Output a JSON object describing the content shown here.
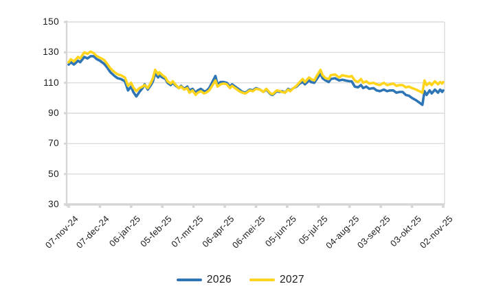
{
  "chart": {
    "background": "#ffffff",
    "text_color": "#1a1a1a",
    "grid_color": "#dcdcdc",
    "axis_color": "#d6d6d6"
  },
  "chart_data": {
    "type": "line",
    "title": "",
    "xlabel": "",
    "ylabel": "",
    "ylim": [
      30,
      150
    ],
    "y_ticks": [
      150,
      130,
      110,
      90,
      70,
      50,
      30
    ],
    "x_tick_labels": [
      "07-nov-24",
      "07-dec-24",
      "06-jan-25",
      "05-feb-25",
      "07-mrt-25",
      "06-apr-25",
      "06-mei-25",
      "05-jun-25",
      "05-jul-25",
      "04-aug-25",
      "03-sep-25",
      "03-okt-25",
      "02-nov-25"
    ],
    "x_tick_days": [
      0,
      30,
      60,
      90,
      120,
      150,
      180,
      210,
      240,
      270,
      300,
      330,
      360
    ],
    "x_range_days": [
      0,
      360
    ],
    "grid": "horizontal",
    "legend_position": "bottom",
    "series": [
      {
        "name": "2026",
        "color": "#2E75B6",
        "points": [
          [
            0,
            122
          ],
          [
            2,
            123.5
          ],
          [
            5,
            122
          ],
          [
            9,
            124.5
          ],
          [
            11,
            123.5
          ],
          [
            15,
            127
          ],
          [
            18,
            126
          ],
          [
            21,
            127.5
          ],
          [
            24,
            127.5
          ],
          [
            27,
            125.5
          ],
          [
            30,
            124.5
          ],
          [
            34,
            122.5
          ],
          [
            37,
            120
          ],
          [
            40,
            117
          ],
          [
            44,
            114.5
          ],
          [
            47,
            113
          ],
          [
            50,
            112.5
          ],
          [
            54,
            111
          ],
          [
            57,
            105
          ],
          [
            60,
            107.5
          ],
          [
            62,
            104
          ],
          [
            65,
            101
          ],
          [
            68,
            104
          ],
          [
            71,
            106.5
          ],
          [
            73,
            109
          ],
          [
            76,
            105.5
          ],
          [
            79,
            108.5
          ],
          [
            81,
            111
          ],
          [
            83,
            116
          ],
          [
            86,
            113.5
          ],
          [
            87,
            115
          ],
          [
            90,
            113.5
          ],
          [
            93,
            112.5
          ],
          [
            95,
            110
          ],
          [
            98,
            108.5
          ],
          [
            100,
            110
          ],
          [
            103,
            108
          ],
          [
            106,
            106.5
          ],
          [
            108,
            108
          ],
          [
            111,
            106
          ],
          [
            114,
            107.5
          ],
          [
            116,
            105
          ],
          [
            119,
            106
          ],
          [
            122,
            103.5
          ],
          [
            124,
            105
          ],
          [
            127,
            106
          ],
          [
            130,
            104.5
          ],
          [
            132,
            104.5
          ],
          [
            135,
            106.5
          ],
          [
            137,
            109
          ],
          [
            141,
            114.5
          ],
          [
            143,
            109
          ],
          [
            146,
            110.5
          ],
          [
            149,
            110.5
          ],
          [
            152,
            110
          ],
          [
            155,
            107.5
          ],
          [
            157,
            109
          ],
          [
            161,
            107
          ],
          [
            164,
            105.5
          ],
          [
            167,
            104
          ],
          [
            170,
            103.5
          ],
          [
            174,
            105.5
          ],
          [
            177,
            105
          ],
          [
            180,
            106.5
          ],
          [
            184,
            105.5
          ],
          [
            187,
            104
          ],
          [
            190,
            105.5
          ],
          [
            194,
            102.5
          ],
          [
            196,
            102
          ],
          [
            200,
            104.5
          ],
          [
            203,
            104
          ],
          [
            205,
            104.5
          ],
          [
            208,
            103.5
          ],
          [
            211,
            106
          ],
          [
            213,
            105
          ],
          [
            216,
            106.5
          ],
          [
            219,
            107.5
          ],
          [
            222,
            109.5
          ],
          [
            225,
            110.5
          ],
          [
            227,
            109
          ],
          [
            231,
            111.5
          ],
          [
            233,
            110.5
          ],
          [
            236,
            110
          ],
          [
            238,
            112
          ],
          [
            242,
            116
          ],
          [
            244,
            113
          ],
          [
            247,
            111.5
          ],
          [
            250,
            110.5
          ],
          [
            252,
            112.5
          ],
          [
            256,
            113
          ],
          [
            260,
            111.5
          ],
          [
            263,
            112
          ],
          [
            266,
            111.5
          ],
          [
            270,
            111
          ],
          [
            272,
            111
          ],
          [
            275,
            107.5
          ],
          [
            278,
            107
          ],
          [
            281,
            108.5
          ],
          [
            283,
            106.5
          ],
          [
            286,
            107.5
          ],
          [
            289,
            106
          ],
          [
            293,
            106.5
          ],
          [
            296,
            105
          ],
          [
            299,
            104.5
          ],
          [
            303,
            105.5
          ],
          [
            306,
            104.5
          ],
          [
            309,
            105
          ],
          [
            312,
            105
          ],
          [
            315,
            103.5
          ],
          [
            318,
            104
          ],
          [
            321,
            104
          ],
          [
            324,
            102
          ],
          [
            327,
            101.5
          ],
          [
            330,
            100
          ],
          [
            334,
            98.5
          ],
          [
            337,
            97
          ],
          [
            340,
            95.5
          ],
          [
            342,
            104.5
          ],
          [
            344,
            102
          ],
          [
            347,
            105
          ],
          [
            349,
            103
          ],
          [
            352,
            105.5
          ],
          [
            355,
            103.5
          ],
          [
            357,
            105.5
          ],
          [
            359,
            104
          ],
          [
            360,
            105
          ]
        ]
      },
      {
        "name": "2027",
        "color": "#FFD41C",
        "points": [
          [
            0,
            123.5
          ],
          [
            2,
            125.5
          ],
          [
            5,
            124
          ],
          [
            9,
            127
          ],
          [
            11,
            126
          ],
          [
            15,
            130
          ],
          [
            18,
            129
          ],
          [
            21,
            130.5
          ],
          [
            24,
            129.5
          ],
          [
            27,
            127.5
          ],
          [
            30,
            126.5
          ],
          [
            34,
            125
          ],
          [
            37,
            122.5
          ],
          [
            40,
            119.5
          ],
          [
            44,
            117
          ],
          [
            47,
            115.5
          ],
          [
            50,
            115
          ],
          [
            54,
            113.5
          ],
          [
            57,
            108
          ],
          [
            60,
            110
          ],
          [
            62,
            107
          ],
          [
            65,
            104.5
          ],
          [
            68,
            106.5
          ],
          [
            71,
            107.5
          ],
          [
            73,
            108.5
          ],
          [
            76,
            106.5
          ],
          [
            79,
            110
          ],
          [
            81,
            113
          ],
          [
            83,
            118.5
          ],
          [
            86,
            115.5
          ],
          [
            87,
            117
          ],
          [
            90,
            115
          ],
          [
            93,
            113.5
          ],
          [
            95,
            111
          ],
          [
            98,
            109.5
          ],
          [
            100,
            111
          ],
          [
            103,
            108.5
          ],
          [
            106,
            106.5
          ],
          [
            108,
            107.5
          ],
          [
            111,
            105.5
          ],
          [
            114,
            106.5
          ],
          [
            116,
            103.5
          ],
          [
            119,
            105
          ],
          [
            122,
            102
          ],
          [
            124,
            103.5
          ],
          [
            127,
            104.5
          ],
          [
            130,
            103
          ],
          [
            132,
            103.5
          ],
          [
            135,
            105
          ],
          [
            137,
            107
          ],
          [
            141,
            111.5
          ],
          [
            143,
            107.5
          ],
          [
            146,
            109
          ],
          [
            149,
            109.5
          ],
          [
            152,
            109
          ],
          [
            155,
            106.5
          ],
          [
            157,
            108
          ],
          [
            161,
            106
          ],
          [
            164,
            104.5
          ],
          [
            167,
            103.5
          ],
          [
            170,
            103
          ],
          [
            174,
            105
          ],
          [
            177,
            104.5
          ],
          [
            180,
            106
          ],
          [
            184,
            105.5
          ],
          [
            187,
            104
          ],
          [
            190,
            106
          ],
          [
            194,
            103
          ],
          [
            196,
            102.5
          ],
          [
            200,
            105
          ],
          [
            203,
            104.5
          ],
          [
            205,
            104
          ],
          [
            208,
            103.5
          ],
          [
            211,
            105.5
          ],
          [
            213,
            104.5
          ],
          [
            216,
            106.5
          ],
          [
            219,
            108
          ],
          [
            222,
            110.5
          ],
          [
            225,
            112.5
          ],
          [
            227,
            110.5
          ],
          [
            231,
            113.5
          ],
          [
            233,
            112.5
          ],
          [
            236,
            111.5
          ],
          [
            238,
            114
          ],
          [
            242,
            118.5
          ],
          [
            244,
            115
          ],
          [
            247,
            113
          ],
          [
            250,
            112.5
          ],
          [
            252,
            115
          ],
          [
            256,
            115.5
          ],
          [
            260,
            113.5
          ],
          [
            263,
            115
          ],
          [
            266,
            114.5
          ],
          [
            270,
            114
          ],
          [
            272,
            114.5
          ],
          [
            275,
            111.5
          ],
          [
            278,
            110.5
          ],
          [
            281,
            112.5
          ],
          [
            283,
            110
          ],
          [
            286,
            111
          ],
          [
            289,
            109.5
          ],
          [
            293,
            110
          ],
          [
            296,
            109
          ],
          [
            299,
            108.5
          ],
          [
            303,
            110
          ],
          [
            306,
            108.5
          ],
          [
            309,
            109
          ],
          [
            312,
            109.5
          ],
          [
            315,
            108
          ],
          [
            318,
            108.5
          ],
          [
            321,
            108.5
          ],
          [
            324,
            107
          ],
          [
            327,
            107.5
          ],
          [
            330,
            106.5
          ],
          [
            334,
            105.5
          ],
          [
            337,
            104.5
          ],
          [
            340,
            103.5
          ],
          [
            342,
            111.5
          ],
          [
            344,
            108.5
          ],
          [
            347,
            110
          ],
          [
            349,
            108.5
          ],
          [
            352,
            111
          ],
          [
            355,
            109
          ],
          [
            357,
            110.5
          ],
          [
            359,
            109.5
          ],
          [
            360,
            110.5
          ]
        ]
      }
    ]
  },
  "legend": {
    "items": [
      {
        "label": "2026"
      },
      {
        "label": "2027"
      }
    ]
  }
}
